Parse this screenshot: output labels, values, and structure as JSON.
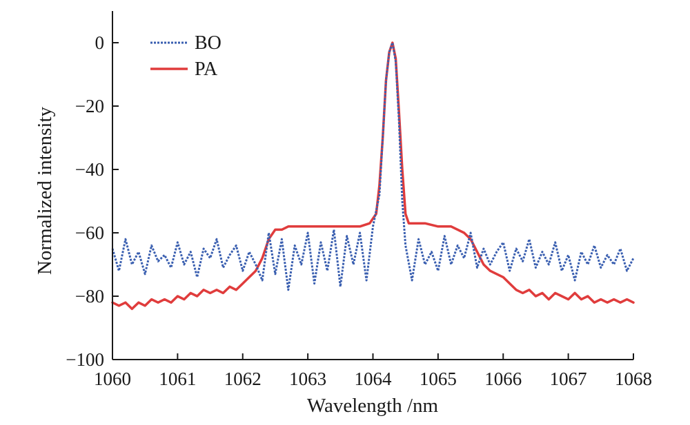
{
  "chart_data": {
    "type": "line",
    "title": "",
    "xlabel": "Wavelength /nm",
    "ylabel": "Normalized intensity",
    "xlim": [
      1060,
      1068
    ],
    "ylim": [
      -100,
      10
    ],
    "xticks": [
      1060,
      1061,
      1062,
      1063,
      1064,
      1065,
      1066,
      1067,
      1068
    ],
    "xtick_labels": [
      "1060",
      "1061",
      "1062",
      "1063",
      "1064",
      "1065",
      "1066",
      "1067",
      "1068"
    ],
    "yticks": [
      -100,
      -80,
      -60,
      -40,
      -20,
      0
    ],
    "ytick_labels": [
      "−100",
      "−80",
      "−60",
      "−40",
      "−20",
      "0"
    ],
    "legend_position": "top-left",
    "series": [
      {
        "name": "BO",
        "color": "#3a5fb0",
        "style": "dotted",
        "x": [
          1060.0,
          1060.1,
          1060.2,
          1060.3,
          1060.4,
          1060.5,
          1060.6,
          1060.7,
          1060.8,
          1060.9,
          1061.0,
          1061.1,
          1061.2,
          1061.3,
          1061.4,
          1061.5,
          1061.6,
          1061.7,
          1061.8,
          1061.9,
          1062.0,
          1062.1,
          1062.2,
          1062.3,
          1062.4,
          1062.5,
          1062.6,
          1062.7,
          1062.8,
          1062.9,
          1063.0,
          1063.1,
          1063.2,
          1063.3,
          1063.4,
          1063.5,
          1063.6,
          1063.7,
          1063.8,
          1063.9,
          1064.0,
          1064.1,
          1064.15,
          1064.2,
          1064.25,
          1064.3,
          1064.35,
          1064.4,
          1064.45,
          1064.5,
          1064.6,
          1064.7,
          1064.8,
          1064.9,
          1065.0,
          1065.1,
          1065.2,
          1065.3,
          1065.4,
          1065.5,
          1065.6,
          1065.7,
          1065.8,
          1065.9,
          1066.0,
          1066.1,
          1066.2,
          1066.3,
          1066.4,
          1066.5,
          1066.6,
          1066.7,
          1066.8,
          1066.9,
          1067.0,
          1067.1,
          1067.2,
          1067.3,
          1067.4,
          1067.5,
          1067.6,
          1067.7,
          1067.8,
          1067.9,
          1068.0
        ],
        "y": [
          -65,
          -72,
          -62,
          -70,
          -66,
          -73,
          -64,
          -69,
          -67,
          -71,
          -63,
          -70,
          -66,
          -74,
          -65,
          -68,
          -62,
          -71,
          -67,
          -64,
          -72,
          -66,
          -70,
          -75,
          -60,
          -73,
          -62,
          -78,
          -64,
          -70,
          -60,
          -76,
          -63,
          -72,
          -59,
          -77,
          -61,
          -70,
          -60,
          -75,
          -58,
          -48,
          -30,
          -12,
          -3,
          0,
          -6,
          -25,
          -50,
          -64,
          -75,
          -62,
          -70,
          -66,
          -72,
          -61,
          -70,
          -64,
          -68,
          -60,
          -71,
          -65,
          -70,
          -66,
          -63,
          -72,
          -65,
          -69,
          -62,
          -71,
          -66,
          -70,
          -63,
          -72,
          -67,
          -75,
          -66,
          -70,
          -64,
          -71,
          -67,
          -70,
          -65,
          -72,
          -68
        ]
      },
      {
        "name": "PA",
        "color": "#e03c3c",
        "style": "solid",
        "x": [
          1060.0,
          1060.1,
          1060.2,
          1060.3,
          1060.4,
          1060.5,
          1060.6,
          1060.7,
          1060.8,
          1060.9,
          1061.0,
          1061.1,
          1061.2,
          1061.3,
          1061.4,
          1061.5,
          1061.6,
          1061.7,
          1061.8,
          1061.9,
          1062.0,
          1062.1,
          1062.2,
          1062.3,
          1062.4,
          1062.5,
          1062.6,
          1062.7,
          1062.8,
          1062.9,
          1063.0,
          1063.2,
          1063.4,
          1063.6,
          1063.8,
          1063.95,
          1064.05,
          1064.1,
          1064.15,
          1064.2,
          1064.25,
          1064.3,
          1064.35,
          1064.4,
          1064.45,
          1064.5,
          1064.55,
          1064.6,
          1064.8,
          1065.0,
          1065.2,
          1065.4,
          1065.5,
          1065.6,
          1065.7,
          1065.8,
          1065.9,
          1066.0,
          1066.1,
          1066.2,
          1066.3,
          1066.4,
          1066.5,
          1066.6,
          1066.7,
          1066.8,
          1066.9,
          1067.0,
          1067.1,
          1067.2,
          1067.3,
          1067.4,
          1067.5,
          1067.6,
          1067.7,
          1067.8,
          1067.9,
          1068.0
        ],
        "y": [
          -82,
          -83,
          -82,
          -84,
          -82,
          -83,
          -81,
          -82,
          -81,
          -82,
          -80,
          -81,
          -79,
          -80,
          -78,
          -79,
          -78,
          -79,
          -77,
          -78,
          -76,
          -74,
          -72,
          -68,
          -62,
          -59,
          -59,
          -58,
          -58,
          -58,
          -58,
          -58,
          -58,
          -58,
          -58,
          -57,
          -54,
          -45,
          -30,
          -12,
          -3,
          0,
          -5,
          -22,
          -40,
          -54,
          -57,
          -57,
          -57,
          -58,
          -58,
          -60,
          -62,
          -66,
          -70,
          -72,
          -73,
          -74,
          -76,
          -78,
          -79,
          -78,
          -80,
          -79,
          -81,
          -79,
          -80,
          -81,
          -79,
          -81,
          -80,
          -82,
          -81,
          -82,
          -81,
          -82,
          -81,
          -82
        ]
      }
    ]
  }
}
